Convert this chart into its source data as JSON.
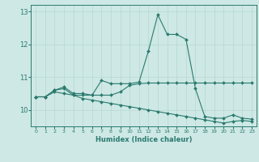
{
  "title": "",
  "xlabel": "Humidex (Indice chaleur)",
  "xlim": [
    -0.5,
    23.5
  ],
  "ylim": [
    9.5,
    13.2
  ],
  "bg_color": "#cde8e5",
  "line_color": "#2a7a6e",
  "grid_color": "#b8d8d4",
  "x_ticks": [
    0,
    1,
    2,
    3,
    4,
    5,
    6,
    7,
    8,
    9,
    10,
    11,
    12,
    13,
    14,
    15,
    16,
    17,
    18,
    19,
    20,
    21,
    22,
    23
  ],
  "y_ticks": [
    10,
    11,
    12,
    13
  ],
  "lines": [
    {
      "x": [
        0,
        1,
        2,
        3,
        4,
        5,
        6,
        7,
        8,
        9,
        10,
        11,
        12,
        13,
        14,
        15,
        16,
        17,
        18,
        19,
        20,
        21,
        22,
        23
      ],
      "y": [
        10.4,
        10.4,
        10.6,
        10.7,
        10.5,
        10.5,
        10.45,
        10.9,
        10.8,
        10.8,
        10.8,
        10.85,
        11.8,
        12.9,
        12.3,
        12.3,
        12.15,
        10.65,
        9.8,
        9.75,
        9.75,
        9.85,
        9.75,
        9.72
      ]
    },
    {
      "x": [
        0,
        1,
        2,
        3,
        4,
        5,
        6,
        7,
        8,
        9,
        10,
        11,
        12,
        13,
        14,
        15,
        16,
        17,
        18,
        19,
        20,
        21,
        22,
        23
      ],
      "y": [
        10.4,
        10.4,
        10.6,
        10.65,
        10.45,
        10.45,
        10.45,
        10.45,
        10.45,
        10.55,
        10.75,
        10.8,
        10.82,
        10.82,
        10.82,
        10.82,
        10.82,
        10.82,
        10.82,
        10.82,
        10.82,
        10.82,
        10.82,
        10.82
      ]
    },
    {
      "x": [
        0,
        1,
        2,
        3,
        4,
        5,
        6,
        7,
        8,
        9,
        10,
        11,
        12,
        13,
        14,
        15,
        16,
        17,
        18,
        19,
        20,
        21,
        22,
        23
      ],
      "y": [
        10.4,
        10.4,
        10.55,
        10.5,
        10.45,
        10.35,
        10.3,
        10.25,
        10.2,
        10.15,
        10.1,
        10.05,
        10.0,
        9.95,
        9.9,
        9.85,
        9.8,
        9.75,
        9.7,
        9.65,
        9.6,
        9.65,
        9.68,
        9.65
      ]
    }
  ]
}
